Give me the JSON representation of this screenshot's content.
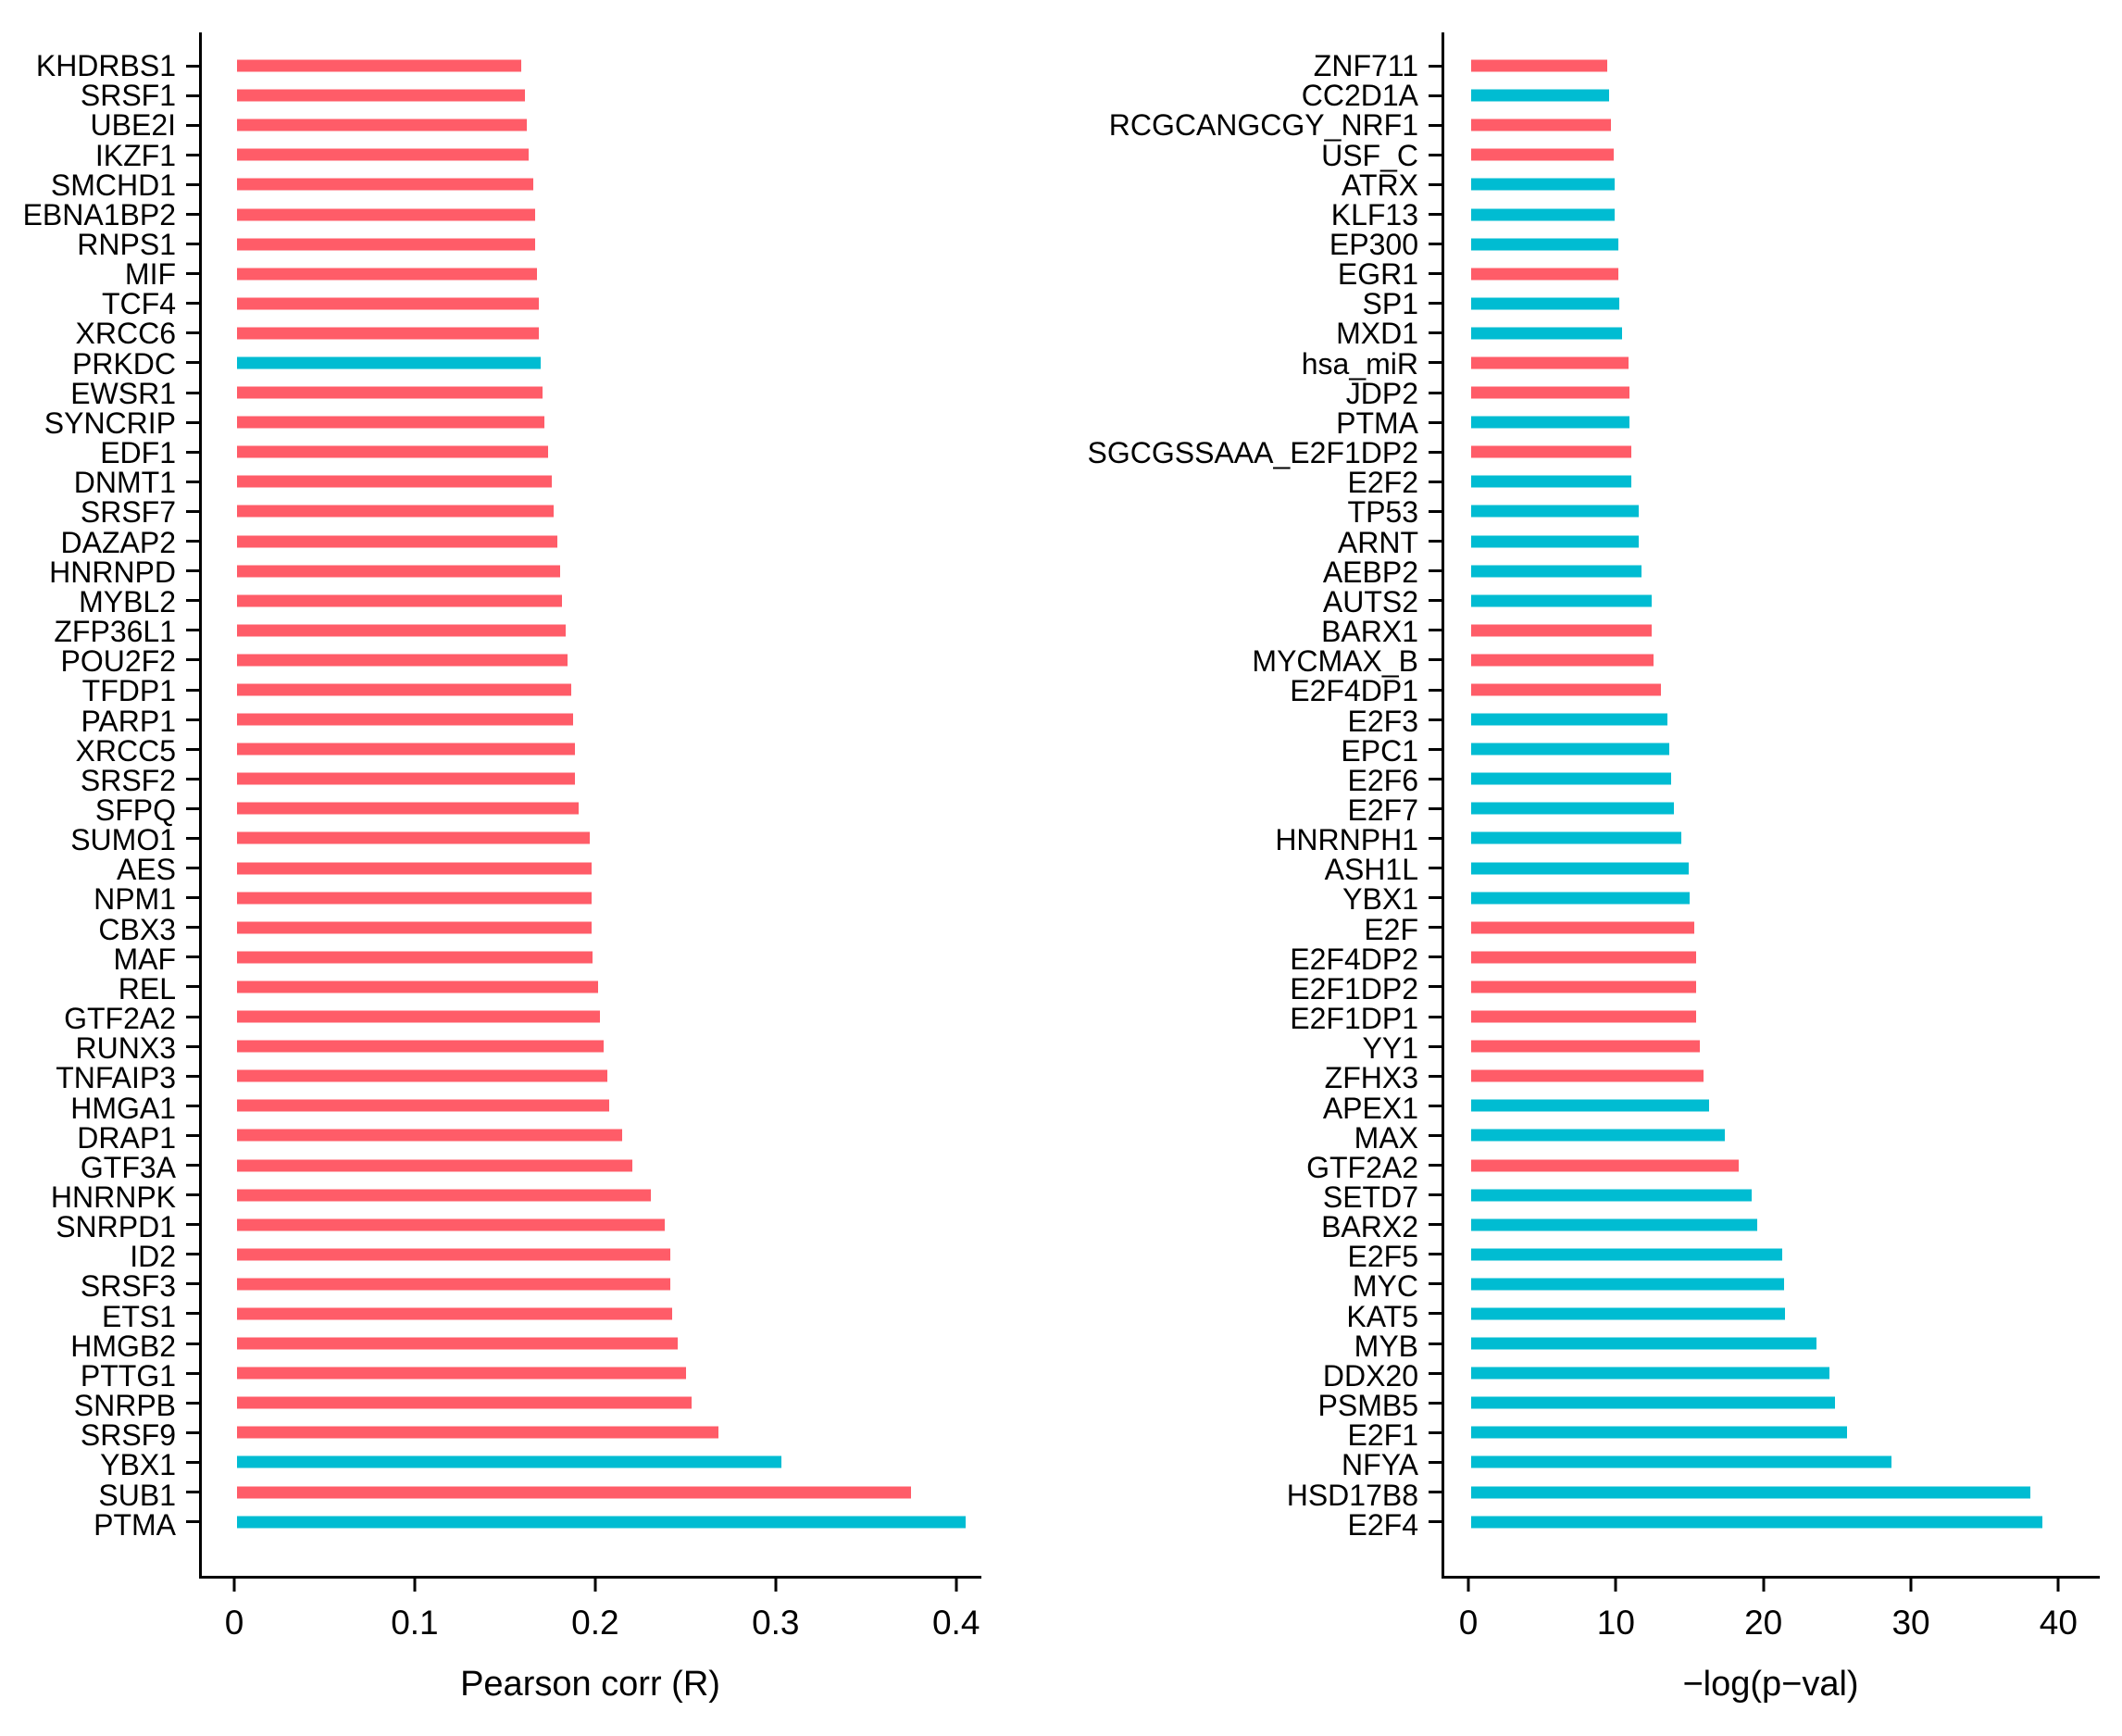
{
  "background": "#ffffff",
  "colors": {
    "red": "#FF5C68",
    "cyan": "#00BCD2",
    "axis": "#000000"
  },
  "chart_data": [
    {
      "type": "bar",
      "orientation": "horizontal",
      "title": "",
      "xlabel": "Pearson corr (R)",
      "ylabel": "",
      "xlim": [
        -0.0195,
        0.414
      ],
      "grid": false,
      "legend": "none",
      "x_ticks": [
        {
          "v": 0,
          "label": "0"
        },
        {
          "v": 0.1,
          "label": "0.1"
        },
        {
          "v": 0.2,
          "label": "0.2"
        },
        {
          "v": 0.3,
          "label": "0.3"
        },
        {
          "v": 0.4,
          "label": "0.4"
        }
      ],
      "items": [
        {
          "label": "KHDRBS1",
          "value": 0.158,
          "color": "red"
        },
        {
          "label": "SRSF1",
          "value": 0.16,
          "color": "red"
        },
        {
          "label": "UBE2I",
          "value": 0.161,
          "color": "red"
        },
        {
          "label": "IKZF1",
          "value": 0.162,
          "color": "red"
        },
        {
          "label": "SMCHD1",
          "value": 0.165,
          "color": "red"
        },
        {
          "label": "EBNA1BP2",
          "value": 0.166,
          "color": "red"
        },
        {
          "label": "RNPS1",
          "value": 0.166,
          "color": "red"
        },
        {
          "label": "MIF",
          "value": 0.167,
          "color": "red"
        },
        {
          "label": "TCF4",
          "value": 0.168,
          "color": "red"
        },
        {
          "label": "XRCC6",
          "value": 0.168,
          "color": "red"
        },
        {
          "label": "PRKDC",
          "value": 0.169,
          "color": "cyan"
        },
        {
          "label": "EWSR1",
          "value": 0.17,
          "color": "red"
        },
        {
          "label": "SYNCRIP",
          "value": 0.171,
          "color": "red"
        },
        {
          "label": "EDF1",
          "value": 0.173,
          "color": "red"
        },
        {
          "label": "DNMT1",
          "value": 0.175,
          "color": "red"
        },
        {
          "label": "SRSF7",
          "value": 0.176,
          "color": "red"
        },
        {
          "label": "DAZAP2",
          "value": 0.178,
          "color": "red"
        },
        {
          "label": "HNRNPD",
          "value": 0.18,
          "color": "red"
        },
        {
          "label": "MYBL2",
          "value": 0.181,
          "color": "red"
        },
        {
          "label": "ZFP36L1",
          "value": 0.183,
          "color": "red"
        },
        {
          "label": "POU2F2",
          "value": 0.184,
          "color": "red"
        },
        {
          "label": "TFDP1",
          "value": 0.186,
          "color": "red"
        },
        {
          "label": "PARP1",
          "value": 0.187,
          "color": "red"
        },
        {
          "label": "XRCC5",
          "value": 0.188,
          "color": "red"
        },
        {
          "label": "SRSF2",
          "value": 0.188,
          "color": "red"
        },
        {
          "label": "SFPQ",
          "value": 0.19,
          "color": "red"
        },
        {
          "label": "SUMO1",
          "value": 0.196,
          "color": "red"
        },
        {
          "label": "AES",
          "value": 0.197,
          "color": "red"
        },
        {
          "label": "NPM1",
          "value": 0.197,
          "color": "red"
        },
        {
          "label": "CBX3",
          "value": 0.197,
          "color": "red"
        },
        {
          "label": "MAF",
          "value": 0.198,
          "color": "red"
        },
        {
          "label": "REL",
          "value": 0.201,
          "color": "red"
        },
        {
          "label": "GTF2A2",
          "value": 0.202,
          "color": "red"
        },
        {
          "label": "RUNX3",
          "value": 0.204,
          "color": "red"
        },
        {
          "label": "TNFAIP3",
          "value": 0.206,
          "color": "red"
        },
        {
          "label": "HMGA1",
          "value": 0.207,
          "color": "red"
        },
        {
          "label": "DRAP1",
          "value": 0.214,
          "color": "red"
        },
        {
          "label": "GTF3A",
          "value": 0.22,
          "color": "red"
        },
        {
          "label": "HNRNPK",
          "value": 0.23,
          "color": "red"
        },
        {
          "label": "SNRPD1",
          "value": 0.238,
          "color": "red"
        },
        {
          "label": "ID2",
          "value": 0.241,
          "color": "red"
        },
        {
          "label": "SRSF3",
          "value": 0.241,
          "color": "red"
        },
        {
          "label": "ETS1",
          "value": 0.242,
          "color": "red"
        },
        {
          "label": "HMGB2",
          "value": 0.245,
          "color": "red"
        },
        {
          "label": "PTTG1",
          "value": 0.25,
          "color": "red"
        },
        {
          "label": "SNRPB",
          "value": 0.253,
          "color": "red"
        },
        {
          "label": "SRSF9",
          "value": 0.268,
          "color": "red"
        },
        {
          "label": "YBX1",
          "value": 0.303,
          "color": "cyan"
        },
        {
          "label": "SUB1",
          "value": 0.375,
          "color": "red"
        },
        {
          "label": "PTMA",
          "value": 0.405,
          "color": "cyan"
        }
      ]
    },
    {
      "type": "bar",
      "orientation": "horizontal",
      "title": "",
      "xlabel": "−log(p−val)",
      "ylabel": "",
      "xlim": [
        -1.82,
        42.8
      ],
      "grid": false,
      "legend": "none",
      "x_ticks": [
        {
          "v": 0,
          "label": "0"
        },
        {
          "v": 10,
          "label": "10"
        },
        {
          "v": 20,
          "label": "20"
        },
        {
          "v": 30,
          "label": "30"
        },
        {
          "v": 40,
          "label": "40"
        }
      ],
      "items": [
        {
          "label": "ZNF711",
          "value": 9.3,
          "color": "red"
        },
        {
          "label": "CC2D1A",
          "value": 9.4,
          "color": "cyan"
        },
        {
          "label": "RCGCANGCGY_NRF1",
          "value": 9.5,
          "color": "red"
        },
        {
          "label": "USF_C",
          "value": 9.7,
          "color": "red"
        },
        {
          "label": "ATRX",
          "value": 9.8,
          "color": "cyan"
        },
        {
          "label": "KLF13",
          "value": 9.8,
          "color": "cyan"
        },
        {
          "label": "EP300",
          "value": 10.0,
          "color": "cyan"
        },
        {
          "label": "EGR1",
          "value": 10.0,
          "color": "red"
        },
        {
          "label": "SP1",
          "value": 10.1,
          "color": "cyan"
        },
        {
          "label": "MXD1",
          "value": 10.3,
          "color": "cyan"
        },
        {
          "label": "hsa_miR",
          "value": 10.7,
          "color": "red"
        },
        {
          "label": "JDP2",
          "value": 10.8,
          "color": "red"
        },
        {
          "label": "PTMA",
          "value": 10.8,
          "color": "cyan"
        },
        {
          "label": "SGCGSSAAA_E2F1DP2",
          "value": 10.9,
          "color": "red"
        },
        {
          "label": "E2F2",
          "value": 10.9,
          "color": "cyan"
        },
        {
          "label": "TP53",
          "value": 11.4,
          "color": "cyan"
        },
        {
          "label": "ARNT",
          "value": 11.4,
          "color": "cyan"
        },
        {
          "label": "AEBP2",
          "value": 11.6,
          "color": "cyan"
        },
        {
          "label": "AUTS2",
          "value": 12.3,
          "color": "cyan"
        },
        {
          "label": "BARX1",
          "value": 12.3,
          "color": "red"
        },
        {
          "label": "MYCMAX_B",
          "value": 12.4,
          "color": "red"
        },
        {
          "label": "E2F4DP1",
          "value": 12.9,
          "color": "red"
        },
        {
          "label": "E2F3",
          "value": 13.4,
          "color": "cyan"
        },
        {
          "label": "EPC1",
          "value": 13.5,
          "color": "cyan"
        },
        {
          "label": "E2F6",
          "value": 13.6,
          "color": "cyan"
        },
        {
          "label": "E2F7",
          "value": 13.8,
          "color": "cyan"
        },
        {
          "label": "HNRNPH1",
          "value": 14.3,
          "color": "cyan"
        },
        {
          "label": "ASH1L",
          "value": 14.8,
          "color": "cyan"
        },
        {
          "label": "YBX1",
          "value": 14.9,
          "color": "cyan"
        },
        {
          "label": "E2F",
          "value": 15.2,
          "color": "red"
        },
        {
          "label": "E2F4DP2",
          "value": 15.3,
          "color": "red"
        },
        {
          "label": "E2F1DP2",
          "value": 15.3,
          "color": "red"
        },
        {
          "label": "E2F1DP1",
          "value": 15.3,
          "color": "red"
        },
        {
          "label": "YY1",
          "value": 15.6,
          "color": "red"
        },
        {
          "label": "ZFHX3",
          "value": 15.8,
          "color": "red"
        },
        {
          "label": "APEX1",
          "value": 16.2,
          "color": "cyan"
        },
        {
          "label": "MAX",
          "value": 17.3,
          "color": "cyan"
        },
        {
          "label": "GTF2A2",
          "value": 18.2,
          "color": "red"
        },
        {
          "label": "SETD7",
          "value": 19.1,
          "color": "cyan"
        },
        {
          "label": "BARX2",
          "value": 19.5,
          "color": "cyan"
        },
        {
          "label": "E2F5",
          "value": 21.2,
          "color": "cyan"
        },
        {
          "label": "MYC",
          "value": 21.3,
          "color": "cyan"
        },
        {
          "label": "KAT5",
          "value": 21.4,
          "color": "cyan"
        },
        {
          "label": "MYB",
          "value": 23.5,
          "color": "cyan"
        },
        {
          "label": "DDX20",
          "value": 24.4,
          "color": "cyan"
        },
        {
          "label": "PSMB5",
          "value": 24.8,
          "color": "cyan"
        },
        {
          "label": "E2F1",
          "value": 25.6,
          "color": "cyan"
        },
        {
          "label": "NFYA",
          "value": 28.6,
          "color": "cyan"
        },
        {
          "label": "HSD17B8",
          "value": 38.1,
          "color": "cyan"
        },
        {
          "label": "E2F4",
          "value": 38.9,
          "color": "cyan"
        }
      ]
    }
  ]
}
